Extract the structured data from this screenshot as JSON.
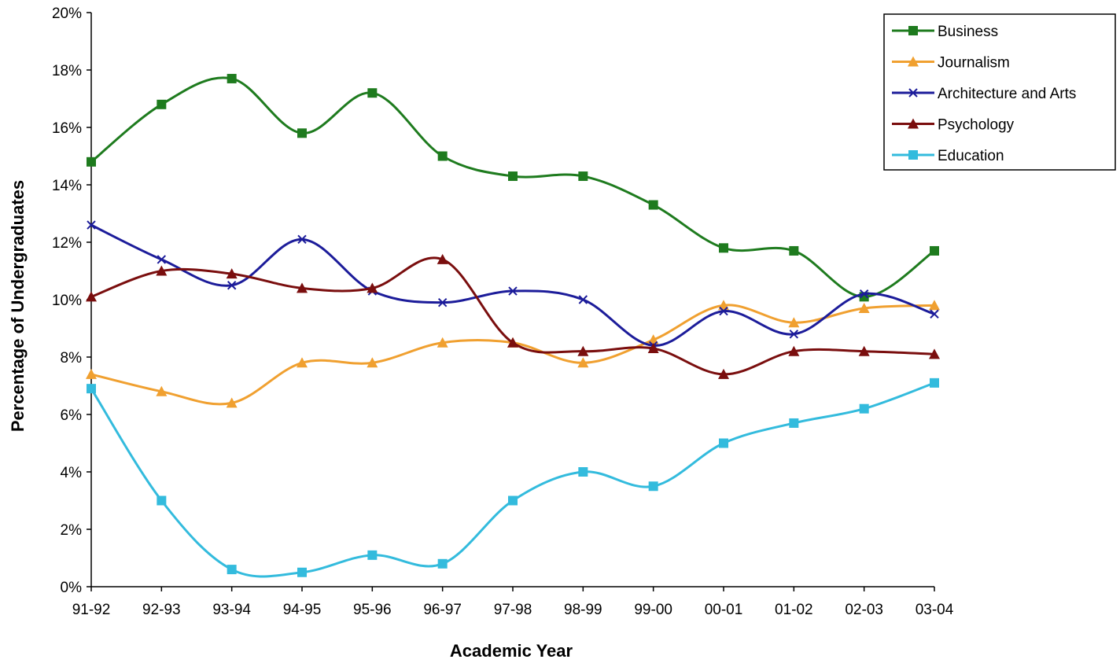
{
  "chart_data": {
    "type": "line",
    "xlabel": "Academic Year",
    "ylabel": "Percentage of Undergraduates",
    "ylim": [
      0,
      20
    ],
    "ytick_step": 2,
    "ytick_suffix": "%",
    "grid": false,
    "legend_position": "top-right",
    "categories": [
      "91-92",
      "92-93",
      "93-94",
      "94-95",
      "95-96",
      "96-97",
      "97-98",
      "98-99",
      "99-00",
      "00-01",
      "01-02",
      "02-03",
      "03-04"
    ],
    "series": [
      {
        "name": "Business",
        "color": "#1e7b1e",
        "marker": "square",
        "values": [
          14.8,
          16.8,
          17.7,
          15.8,
          17.2,
          15.0,
          14.3,
          14.3,
          13.3,
          11.8,
          11.7,
          10.1,
          11.7
        ]
      },
      {
        "name": "Journalism",
        "color": "#f0a030",
        "marker": "triangle",
        "values": [
          7.4,
          6.8,
          6.4,
          7.8,
          7.8,
          8.5,
          8.5,
          7.8,
          8.6,
          9.8,
          9.2,
          9.7,
          9.8
        ]
      },
      {
        "name": "Architecture and Arts",
        "color": "#1c1c9a",
        "marker": "x",
        "values": [
          12.6,
          11.4,
          10.5,
          12.1,
          10.3,
          9.9,
          10.3,
          10.0,
          8.4,
          9.6,
          8.8,
          10.2,
          9.5
        ]
      },
      {
        "name": "Psychology",
        "color": "#7a0e0e",
        "marker": "triangle",
        "values": [
          10.1,
          11.0,
          10.9,
          10.4,
          10.4,
          11.4,
          8.5,
          8.2,
          8.3,
          7.4,
          8.2,
          8.2,
          8.1
        ]
      },
      {
        "name": "Education",
        "color": "#33bbdd",
        "marker": "square",
        "values": [
          6.9,
          3.0,
          0.6,
          0.5,
          1.1,
          0.8,
          3.0,
          4.0,
          3.5,
          5.0,
          5.7,
          6.2,
          7.1
        ]
      }
    ]
  }
}
